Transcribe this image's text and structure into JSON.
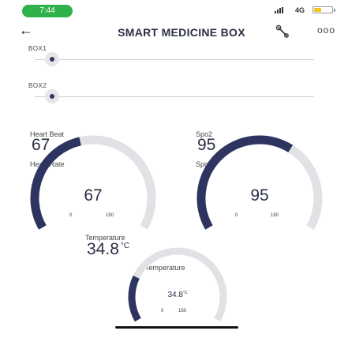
{
  "status_bar": {
    "time": "7:44",
    "network": "4G"
  },
  "header": {
    "title": "SMART MEDICINE BOX",
    "back_icon": "arrow-left-icon",
    "settings_icon": "wrench-icon",
    "menu_icon": "more-icon"
  },
  "sliders": [
    {
      "label": "BOX1",
      "value": 0
    },
    {
      "label": "BOX2",
      "value": 0
    }
  ],
  "readouts": {
    "heart_beat": {
      "label": "Heart Beat",
      "value": "67"
    },
    "spo2": {
      "label": "Spo2",
      "value": "95"
    },
    "temperature": {
      "label": "Temperature",
      "value": "34.8",
      "unit": "°C"
    }
  },
  "gauges": {
    "heart_rate": {
      "label": "Heart Rate",
      "value": 67,
      "value_text": "67",
      "min": 0,
      "max": 150,
      "min_text": "0",
      "max_text": "150"
    },
    "spo2": {
      "label": "Spo2",
      "value": 95,
      "value_text": "95",
      "min": 0,
      "max": 150,
      "min_text": "0",
      "max_text": "150"
    },
    "temperature": {
      "label": "Temperature",
      "value": 34.8,
      "value_text": "34.8",
      "unit": "°C",
      "min": 0,
      "max": 150,
      "min_text": "0",
      "max_text": "150"
    }
  },
  "colors": {
    "accent": "#2e3460",
    "gauge_track": "#e2e2e6",
    "status_pill": "#2fb24a",
    "battery": "#f2c51b"
  }
}
